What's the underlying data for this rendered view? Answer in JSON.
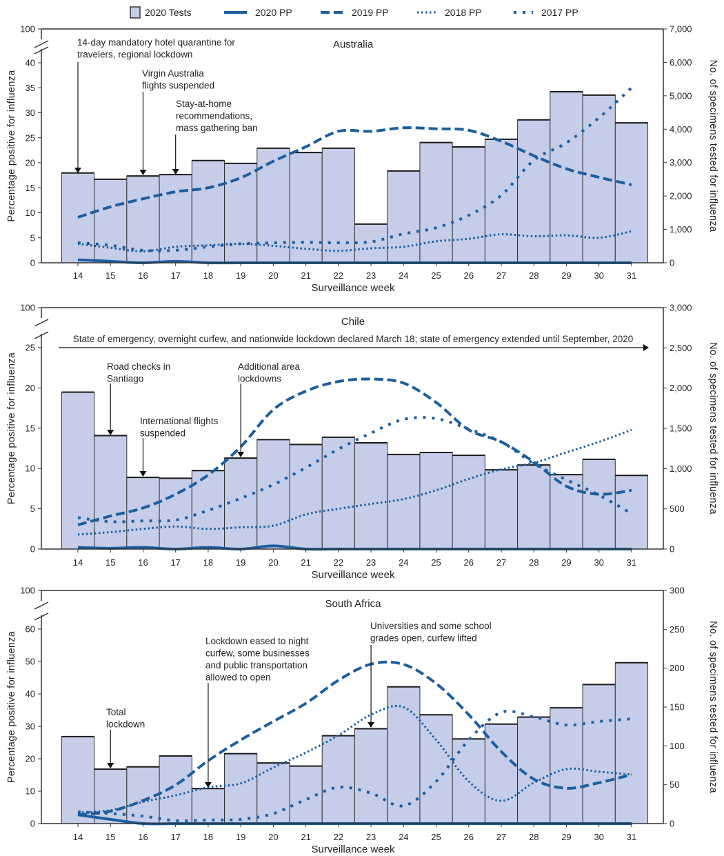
{
  "colors": {
    "bar_fill": "#c5cde8",
    "bar_stroke": "#1a1a1a",
    "line": "#1c5e9e"
  },
  "chart_data": [
    {
      "type": "bar+line",
      "title": "Australia",
      "xlabel": "Surveillance week",
      "ylabel_left": "Percentage positive for influenza",
      "ylabel_right": "No. of specimens tested for influenza",
      "left_axis": {
        "range": [
          0,
          100
        ],
        "break_after": 40,
        "ticks": [
          0,
          5,
          10,
          15,
          20,
          25,
          30,
          35,
          40,
          100
        ]
      },
      "right_axis": {
        "range": [
          0,
          7000
        ],
        "ticks": [
          "0",
          "1,000",
          "2,000",
          "3,000",
          "4,000",
          "5,000",
          "6,000",
          "7,000"
        ]
      },
      "weeks": [
        14,
        15,
        16,
        17,
        18,
        19,
        20,
        21,
        22,
        23,
        24,
        25,
        26,
        27,
        28,
        29,
        30,
        31
      ],
      "tests_2020": [
        2690,
        2500,
        2600,
        2640,
        3060,
        2975,
        3430,
        3300,
        3430,
        1160,
        2750,
        3600,
        3470,
        3700,
        4280,
        5120,
        5020,
        4190
      ],
      "series": [
        {
          "name": "2020 PP",
          "values": [
            0.6,
            0.3,
            0,
            0.3,
            0,
            0,
            0,
            0,
            0,
            0,
            0,
            0,
            0,
            0,
            0,
            0,
            0,
            0
          ]
        },
        {
          "name": "2019 PP",
          "values": [
            9.1,
            11.2,
            12.8,
            14.2,
            15,
            17,
            20.3,
            23.2,
            26.3,
            26.3,
            27,
            26.8,
            26.5,
            24.3,
            21.4,
            18.8,
            17.1,
            15.6
          ]
        },
        {
          "name": "2018 PP",
          "values": [
            3.8,
            3,
            2.3,
            3.2,
            3.5,
            3.8,
            3.4,
            2.8,
            2.4,
            2.9,
            3.2,
            4.3,
            4.8,
            5.7,
            5.3,
            5.5,
            5,
            6.3
          ]
        },
        {
          "name": "2017 PP",
          "values": [
            4,
            3.5,
            2.5,
            2.5,
            3.2,
            3.8,
            4,
            4.1,
            4,
            4.2,
            5.8,
            7,
            9.5,
            13.5,
            20.5,
            24,
            29,
            35
          ]
        }
      ],
      "annotations": [
        {
          "week": 14,
          "lines": [
            "14-day mandatory hotel quarantine for",
            "travelers, regional lockdown"
          ]
        },
        {
          "week": 16,
          "lines": [
            "Virgin Australia",
            "flights suspended"
          ]
        },
        {
          "week": 17,
          "lines": [
            "Stay-at-home",
            "recommendations,",
            "mass gathering ban"
          ]
        }
      ]
    },
    {
      "type": "bar+line",
      "title": "Chile",
      "xlabel": "Surveillance week",
      "ylabel_left": "Percentage positive for influenza",
      "ylabel_right": "No. of specimens tested for influenza",
      "left_axis": {
        "range": [
          0,
          100
        ],
        "break_after": 25,
        "ticks": [
          0,
          5,
          10,
          15,
          20,
          25,
          100
        ]
      },
      "right_axis": {
        "range": [
          0,
          3000
        ],
        "ticks": [
          "0",
          "500",
          "1,000",
          "1,500",
          "2,000",
          "2,500",
          "3,000"
        ]
      },
      "weeks": [
        14,
        15,
        16,
        17,
        18,
        19,
        20,
        21,
        22,
        23,
        24,
        25,
        26,
        27,
        28,
        29,
        30,
        31
      ],
      "tests_2020": [
        1950,
        1410,
        890,
        880,
        975,
        1130,
        1360,
        1300,
        1390,
        1320,
        1175,
        1200,
        1165,
        985,
        1045,
        925,
        1115,
        915
      ],
      "series": [
        {
          "name": "2020 PP",
          "values": [
            0.2,
            0.1,
            0.2,
            0,
            0.2,
            0,
            0.4,
            0,
            0,
            0,
            0,
            0,
            0,
            0,
            0,
            0,
            0,
            0
          ]
        },
        {
          "name": "2019 PP",
          "values": [
            3,
            4.1,
            5.1,
            6.8,
            9.2,
            12.7,
            17.3,
            19.6,
            20.8,
            21.1,
            20.6,
            18.2,
            14.8,
            13.3,
            10.8,
            7.8,
            6.8,
            7.3
          ]
        },
        {
          "name": "2018 PP",
          "values": [
            1.8,
            2.1,
            2.5,
            2.8,
            2.5,
            2.7,
            2.9,
            4.3,
            5,
            5.6,
            6.2,
            7.3,
            8.7,
            9.9,
            10.7,
            12,
            13.3,
            14.8
          ]
        },
        {
          "name": "2017 PP",
          "values": [
            3.9,
            3.4,
            3.5,
            3.6,
            4.8,
            6.3,
            8,
            10.1,
            12.4,
            14.4,
            16.1,
            16.2,
            14.9,
            13.3,
            10.6,
            8.6,
            6.7,
            4.4
          ]
        }
      ],
      "banner": "State of emergency, overnight curfew, and nationwide lockdown declared March 18; state of emergency extended until September, 2020",
      "annotations": [
        {
          "week": 15,
          "lines": [
            "Road checks in",
            "Santiago"
          ]
        },
        {
          "week": 16,
          "lines": [
            "International flights",
            "suspended"
          ]
        },
        {
          "week": 19,
          "lines": [
            "Additional area",
            "lockdowns"
          ]
        }
      ]
    },
    {
      "type": "bar+line",
      "title": "South Africa",
      "xlabel": "Surveillance week",
      "ylabel_left": "Percentage positive for influenza",
      "ylabel_right": "No. of specimens tested for influenza",
      "left_axis": {
        "range": [
          0,
          100
        ],
        "break_after": 60,
        "ticks": [
          0,
          10,
          20,
          30,
          40,
          50,
          60,
          100
        ]
      },
      "right_axis": {
        "range": [
          0,
          300
        ],
        "ticks": [
          "0",
          "50",
          "100",
          "150",
          "200",
          "250",
          "300"
        ]
      },
      "weeks": [
        14,
        15,
        16,
        17,
        18,
        19,
        20,
        21,
        22,
        23,
        24,
        25,
        26,
        27,
        28,
        29,
        30,
        31
      ],
      "tests_2020": [
        112,
        70,
        73,
        87,
        45,
        90,
        78,
        74,
        113,
        122,
        176,
        140,
        109,
        128,
        137,
        149,
        179,
        207
      ],
      "series": [
        {
          "name": "2020 PP",
          "values": [
            2.7,
            1.3,
            0,
            0,
            0,
            0,
            0,
            0,
            0,
            0,
            0,
            0,
            0,
            0,
            0,
            0,
            0,
            0
          ]
        },
        {
          "name": "2019 PP",
          "values": [
            2.7,
            3.8,
            7.1,
            11.9,
            19.4,
            25.8,
            31.5,
            37.1,
            44.2,
            49.2,
            49.1,
            43.2,
            33.6,
            22.2,
            13.7,
            10.9,
            12.6,
            15.1
          ]
        },
        {
          "name": "2018 PP",
          "values": [
            3.4,
            4.1,
            6.7,
            8.7,
            11.2,
            12.4,
            17.3,
            21.9,
            27.2,
            33.6,
            35.9,
            25.8,
            13,
            7,
            12.6,
            16.8,
            16,
            15.1
          ]
        },
        {
          "name": "2017 PP",
          "values": [
            3.6,
            3.1,
            2.3,
            0.9,
            1.1,
            1.3,
            3.1,
            7.4,
            11.2,
            9.4,
            5.5,
            13,
            25.8,
            34.3,
            32.9,
            30.4,
            31.5,
            32.3
          ]
        }
      ],
      "annotations": [
        {
          "week": 15,
          "lines": [
            "Total",
            "lockdown"
          ]
        },
        {
          "week": 18,
          "lines": [
            "Lockdown eased to night",
            "curfew, some businesses",
            "and public transportation",
            "allowed to open"
          ]
        },
        {
          "week": 23,
          "lines": [
            "Universities and some school",
            "grades open, curfew lifted"
          ]
        }
      ]
    }
  ],
  "legend": {
    "items": [
      {
        "label": "2020 Tests",
        "kind": "bar"
      },
      {
        "label": "2020 PP",
        "kind": "solid"
      },
      {
        "label": "2019 PP",
        "kind": "dashed"
      },
      {
        "label": "2018 PP",
        "kind": "dotted"
      },
      {
        "label": "2017 PP",
        "kind": "sparse-dotted"
      }
    ],
    "placement": "top"
  }
}
